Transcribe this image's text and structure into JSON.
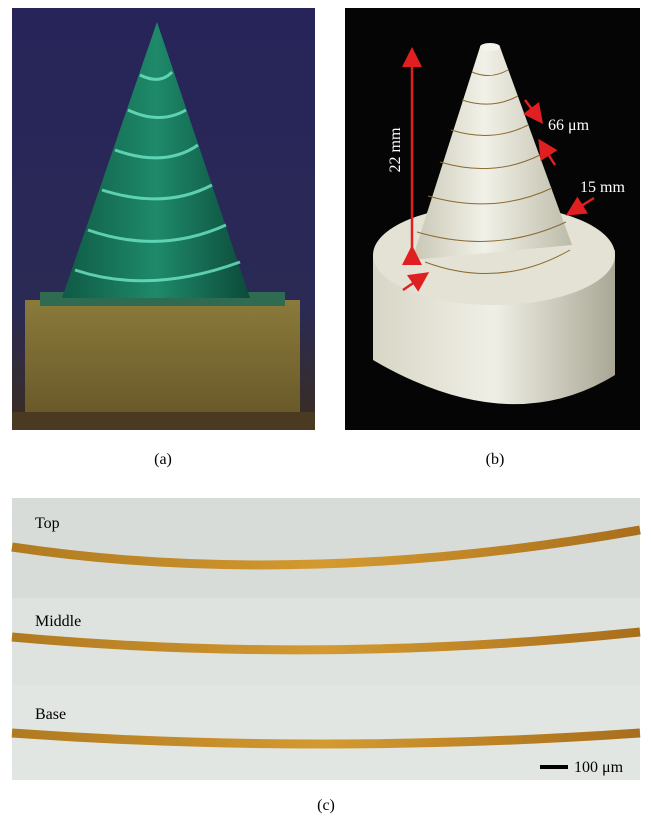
{
  "panels": {
    "a": {
      "label": "(a)"
    },
    "b": {
      "label": "(b)",
      "annotations": [
        "22 mm",
        "66 μm",
        "15 mm"
      ]
    },
    "c": {
      "label": "(c)",
      "rows": [
        "Top",
        "Middle",
        "Base"
      ],
      "scale_bar": "100 μm"
    }
  }
}
